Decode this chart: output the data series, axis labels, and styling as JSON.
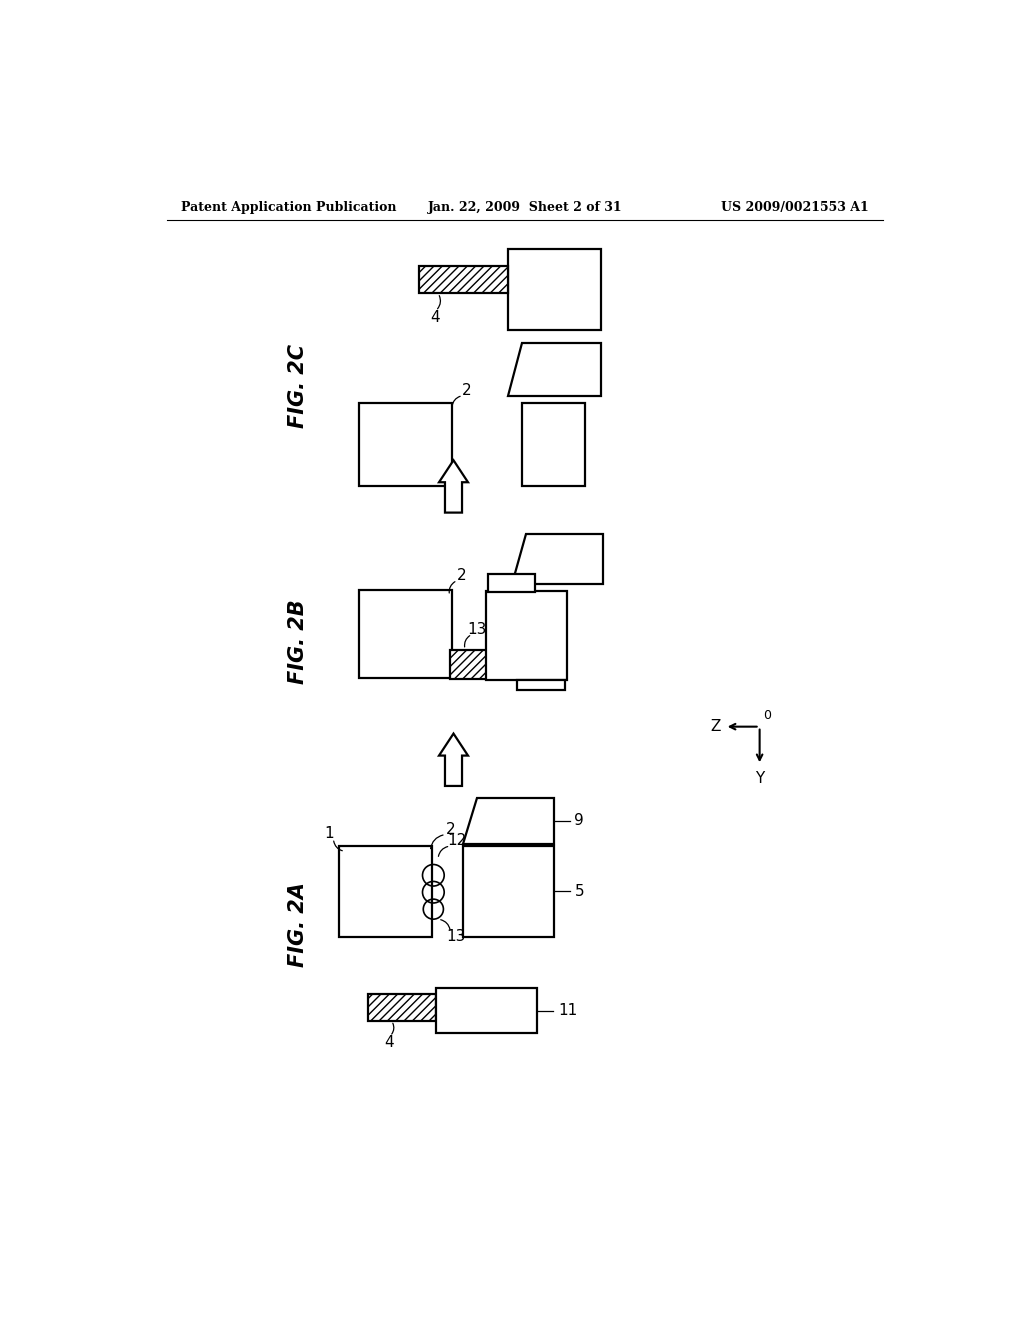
{
  "bg_color": "#ffffff",
  "header_left": "Patent Application Publication",
  "header_center": "Jan. 22, 2009  Sheet 2 of 31",
  "header_right": "US 2009/0021553 A1",
  "fig2c_label": "FIG. 2C",
  "fig2b_label": "FIG. 2B",
  "fig2a_label": "FIG. 2A",
  "lw": 1.6
}
